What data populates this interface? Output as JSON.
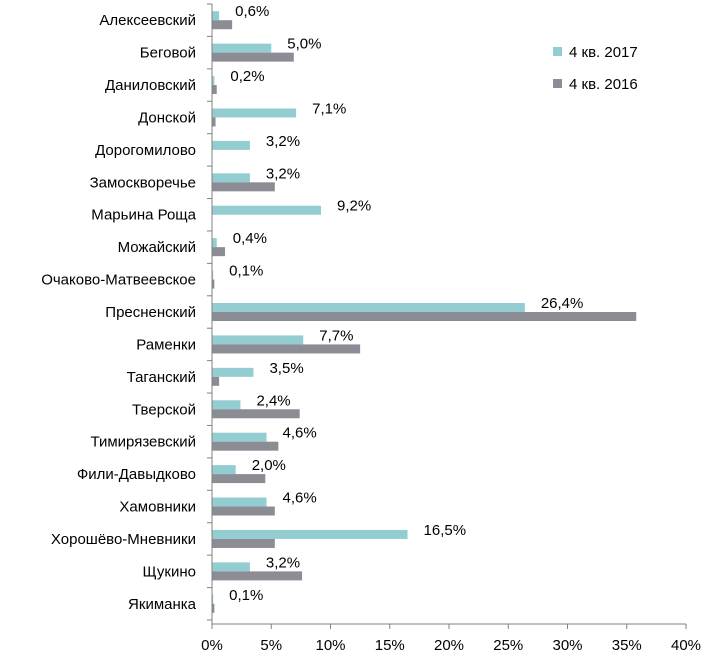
{
  "chart_data": {
    "type": "bar",
    "orientation": "horizontal",
    "categories": [
      "Алексеевский",
      "Беговой",
      "Даниловский",
      "Донской",
      "Дорогомилово",
      "Замоскворечье",
      "Марьина Роща",
      "Можайский",
      "Очаково-Матвеевское",
      "Пресненский",
      "Раменки",
      "Таганский",
      "Тверской",
      "Тимирязевский",
      "Фили-Давыдково",
      "Хамовники",
      "Хорошёво-Мневники",
      "Щукино",
      "Якиманка"
    ],
    "series": [
      {
        "name": "4 кв. 2017",
        "color": "#93cdd1",
        "values": [
          0.6,
          5.0,
          0.2,
          7.1,
          3.2,
          3.2,
          9.2,
          0.4,
          0.1,
          26.4,
          7.7,
          3.5,
          2.4,
          4.6,
          2.0,
          4.6,
          16.5,
          3.2,
          0.1
        ],
        "labels": [
          "0,6%",
          "5,0%",
          "0,2%",
          "7,1%",
          "3,2%",
          "3,2%",
          "9,2%",
          "0,4%",
          "0,1%",
          "26,4%",
          "7,7%",
          "3,5%",
          "2,4%",
          "4,6%",
          "2,0%",
          "4,6%",
          "16,5%",
          "3,2%",
          "0,1%"
        ]
      },
      {
        "name": "4 кв. 2016",
        "color": "#8c8c94",
        "values": [
          1.7,
          6.9,
          0.4,
          0.3,
          0.0,
          5.3,
          0.0,
          1.1,
          0.2,
          35.8,
          12.5,
          0.6,
          7.4,
          5.6,
          4.5,
          5.3,
          5.3,
          7.6,
          0.2
        ]
      }
    ],
    "x_ticks": [
      "0%",
      "5%",
      "10%",
      "15%",
      "20%",
      "25%",
      "30%",
      "35%",
      "40%"
    ],
    "xlim": [
      0,
      40
    ],
    "legend": "top-right",
    "grid": false
  }
}
